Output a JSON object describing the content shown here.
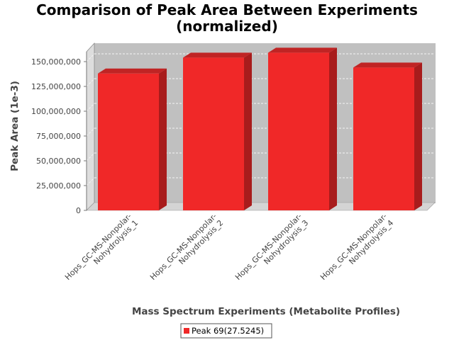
{
  "chart_data": {
    "type": "bar",
    "title": [
      "Comparison of Peak Area Between Experiments",
      "(normalized)"
    ],
    "xlabel": "Mass Spectrum Experiments (Metabolite Profiles)",
    "ylabel": "Peak Area (1e-3)",
    "categories": [
      [
        "Hops_GC-MS-Nonpolar-",
        "Nohydrolysis_1"
      ],
      [
        "Hops_GC-MS-Nonpolar-",
        "Nohydrolysis_2"
      ],
      [
        "Hops_GC-MS-Nonpolar-",
        "Nohydrolysis_3"
      ],
      [
        "Hops_GC-MS-Nonpolar-",
        "Nohydrolysis_4"
      ]
    ],
    "series": [
      {
        "name": "Peak 69(27.5245)",
        "color": "#f02828",
        "values": [
          138000000,
          154000000,
          159000000,
          144000000
        ]
      }
    ],
    "ylim": [
      0,
      160000000
    ],
    "yticks": [
      0,
      25000000,
      50000000,
      75000000,
      100000000,
      125000000,
      150000000
    ],
    "ytick_labels": [
      "0",
      "25,000,000",
      "50,000,000",
      "75,000,000",
      "100,000,000",
      "125,000,000",
      "150,000,000"
    ],
    "grid": true,
    "legend_position": "bottom",
    "style": "3d",
    "colors": {
      "bar_front": "#f02828",
      "bar_top": "#c02424",
      "bar_side": "#a81c1c",
      "plot_back": "#c0c0c0",
      "plot_wall": "#dddddd",
      "plot_floor": "#d4d4d4",
      "gridline": "#f4f4f4"
    }
  }
}
